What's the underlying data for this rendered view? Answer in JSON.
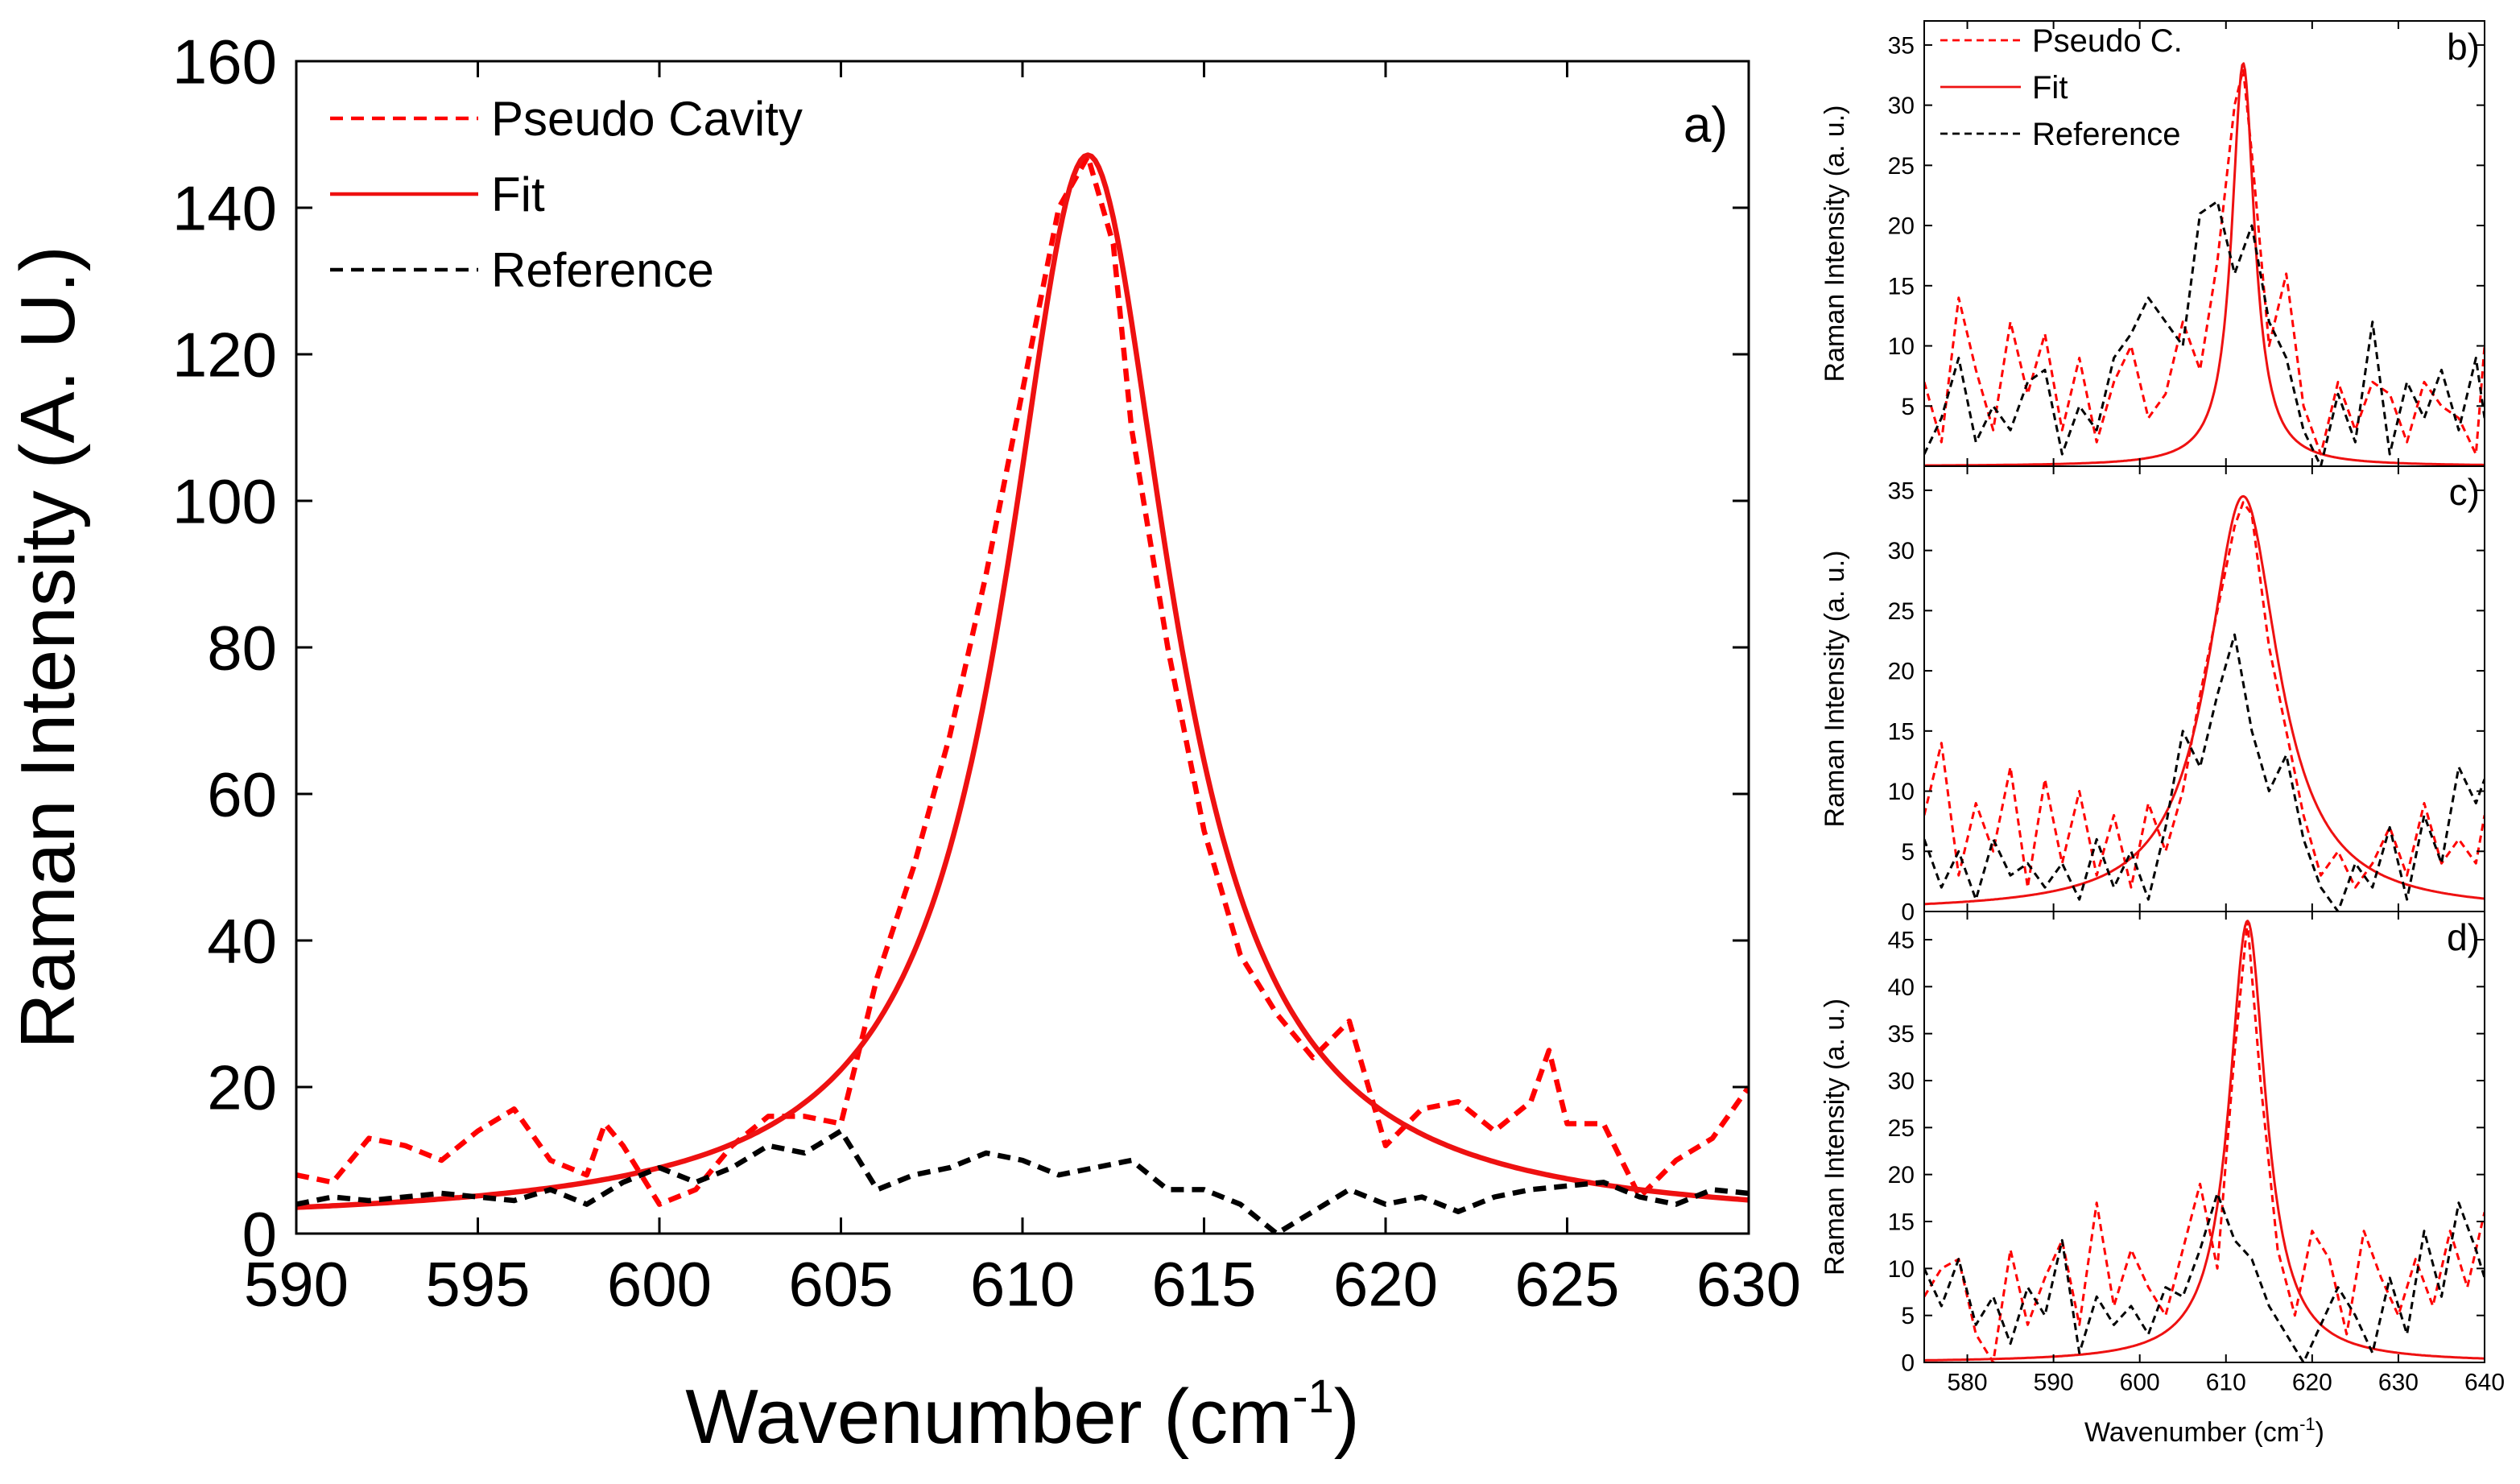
{
  "colors": {
    "pseudo": "#ff0000",
    "fit": "#ee1111",
    "reference": "#000000",
    "axis": "#000000"
  },
  "chart_data": [
    {
      "panel": "a)",
      "type": "line",
      "xlabel": "Wavenumber (cm",
      "xlabel_sup": "-1",
      "xlabel_end": ")",
      "ylabel": "Raman Intensity (A. U.)",
      "xlim": [
        590,
        630
      ],
      "ylim": [
        0,
        160
      ],
      "xticks": [
        590,
        595,
        600,
        605,
        610,
        615,
        620,
        625,
        630
      ],
      "yticks": [
        0,
        20,
        40,
        60,
        80,
        100,
        120,
        140,
        160
      ],
      "legend_position": "top-left",
      "grid": false,
      "fit": {
        "center": 611.8,
        "amp": 146,
        "gamma": 2.8,
        "base": 1.2
      },
      "series": [
        {
          "name": "Pseudo Cavity",
          "style": "dashed-red",
          "x": [
            590,
            591,
            592,
            593,
            594,
            595,
            596,
            597,
            598,
            598.5,
            599,
            600,
            601,
            602,
            603,
            604,
            605,
            606,
            607,
            608,
            609,
            610,
            611,
            611.8,
            612.5,
            613,
            614,
            615,
            616,
            617,
            618,
            619,
            620,
            621,
            622,
            623,
            624,
            624.5,
            625,
            626,
            627,
            628,
            629,
            630
          ],
          "y": [
            8,
            7,
            13,
            12,
            10,
            14,
            17,
            10,
            8,
            15,
            12,
            4,
            6,
            12,
            16,
            16,
            15,
            35,
            50,
            68,
            90,
            115,
            140,
            147,
            135,
            110,
            80,
            55,
            38,
            30,
            24,
            29,
            12,
            17,
            18,
            14,
            18,
            25,
            15,
            15,
            5,
            10,
            13,
            20
          ]
        },
        {
          "name": "Fit",
          "style": "solid-red",
          "fit": true
        },
        {
          "name": "Reference",
          "style": "dashed-black",
          "x": [
            590,
            591,
            592,
            593,
            594,
            595,
            596,
            597,
            598,
            599,
            600,
            601,
            602,
            603,
            604,
            605,
            606,
            607,
            608,
            609,
            610,
            611,
            612,
            613,
            614,
            615,
            616,
            617,
            618,
            619,
            620,
            621,
            622,
            623,
            624,
            625,
            626,
            627,
            628,
            629,
            630
          ],
          "y": [
            4,
            5,
            4.5,
            5,
            5.5,
            5,
            4.5,
            6,
            4,
            7,
            9,
            7,
            9,
            12,
            11,
            14,
            6,
            8,
            9,
            11,
            10,
            8,
            9,
            10,
            6,
            6,
            4,
            0,
            3,
            6,
            4,
            5,
            3,
            5,
            6,
            6.5,
            7,
            5,
            4,
            6,
            5.5
          ]
        }
      ]
    },
    {
      "panel": "b)",
      "type": "line",
      "xlim": [
        575,
        640
      ],
      "ylim": [
        0,
        37
      ],
      "yticks": [
        5,
        10,
        15,
        20,
        25,
        30,
        35
      ],
      "ylabel": "Raman Intensity (a. u.)",
      "legend_position": "top-left",
      "fit": {
        "center": 612,
        "amp": 33.5,
        "gamma": 1.6,
        "base": 0
      },
      "series": [
        {
          "name": "Pseudo C.",
          "style": "dashed-red",
          "x": [
            575,
            577,
            579,
            581,
            583,
            585,
            587,
            589,
            591,
            593,
            595,
            597,
            599,
            601,
            603,
            605,
            607,
            609,
            611,
            612,
            613,
            615,
            617,
            619,
            621,
            623,
            625,
            627,
            629,
            631,
            633,
            635,
            637,
            639,
            640
          ],
          "y": [
            7,
            2,
            14,
            8,
            3,
            12,
            6,
            11,
            3,
            9,
            2,
            7,
            10,
            4,
            6,
            12,
            8,
            17,
            30,
            33,
            26,
            10,
            16,
            5,
            1,
            7,
            3,
            7,
            6,
            2,
            7,
            5,
            4,
            1,
            10
          ]
        },
        {
          "name": "Fit",
          "style": "solid-red",
          "fit": true
        },
        {
          "name": "Reference",
          "style": "dashed-black",
          "x": [
            575,
            577,
            579,
            581,
            583,
            585,
            587,
            589,
            591,
            593,
            595,
            597,
            599,
            601,
            603,
            605,
            607,
            609,
            611,
            613,
            615,
            617,
            619,
            621,
            623,
            625,
            627,
            629,
            631,
            633,
            635,
            637,
            639,
            640
          ],
          "y": [
            1,
            4,
            9,
            2,
            5,
            3,
            7,
            8,
            1,
            5,
            3,
            9,
            11,
            14,
            12,
            10,
            21,
            22,
            16,
            20,
            12,
            9,
            3,
            0,
            6,
            2,
            12,
            1,
            7,
            4,
            8,
            3,
            9,
            4
          ]
        }
      ]
    },
    {
      "panel": "c)",
      "type": "line",
      "xlim": [
        575,
        640
      ],
      "ylim": [
        0,
        37
      ],
      "yticks": [
        0,
        5,
        10,
        15,
        20,
        25,
        30,
        35
      ],
      "ylabel": "Raman Intensity (a. u.)",
      "fit": {
        "center": 612,
        "amp": 34.5,
        "gamma": 5,
        "base": 0
      },
      "series": [
        {
          "name": "Pseudo C.",
          "style": "dashed-red",
          "x": [
            575,
            577,
            579,
            581,
            583,
            585,
            587,
            589,
            591,
            593,
            595,
            597,
            599,
            601,
            603,
            605,
            607,
            609,
            611,
            612,
            613,
            615,
            617,
            619,
            621,
            623,
            625,
            627,
            629,
            631,
            633,
            635,
            637,
            639,
            640
          ],
          "y": [
            8,
            14,
            3,
            9,
            5,
            12,
            2,
            11,
            4,
            10,
            3,
            8,
            2,
            9,
            5,
            10,
            18,
            25,
            32,
            34,
            33,
            22,
            15,
            8,
            3,
            5,
            2,
            4,
            7,
            3,
            9,
            4,
            6,
            4,
            8
          ]
        },
        {
          "name": "Fit",
          "style": "solid-red",
          "fit": true
        },
        {
          "name": "Reference",
          "style": "dashed-black",
          "x": [
            575,
            577,
            579,
            581,
            583,
            585,
            587,
            589,
            591,
            593,
            595,
            597,
            599,
            601,
            603,
            605,
            607,
            609,
            611,
            613,
            615,
            617,
            619,
            621,
            623,
            625,
            627,
            629,
            631,
            633,
            635,
            637,
            639,
            640
          ],
          "y": [
            6,
            2,
            5,
            1,
            6,
            3,
            4,
            2,
            4,
            1,
            6,
            2,
            5,
            1,
            7,
            15,
            12,
            18,
            23,
            15,
            10,
            13,
            6,
            2,
            0,
            4,
            2,
            7,
            1,
            8,
            4,
            12,
            9,
            11
          ]
        }
      ]
    },
    {
      "panel": "d)",
      "type": "line",
      "xlabel": "Wavenumber (cm",
      "xlabel_sup": "-1",
      "xlabel_end": ")",
      "xlim": [
        575,
        640
      ],
      "ylim": [
        0,
        48
      ],
      "xticks": [
        580,
        590,
        600,
        610,
        620,
        630,
        640
      ],
      "yticks": [
        0,
        5,
        10,
        15,
        20,
        25,
        30,
        35,
        40,
        45
      ],
      "ylabel": "Raman Intensity (a. u.)",
      "fit": {
        "center": 612.5,
        "amp": 47,
        "gamma": 2.6,
        "base": 0
      },
      "series": [
        {
          "name": "Pseudo C.",
          "style": "dashed-red",
          "x": [
            575,
            577,
            579,
            581,
            583,
            585,
            587,
            589,
            591,
            593,
            595,
            597,
            599,
            601,
            603,
            605,
            607,
            609,
            611,
            612.5,
            614,
            616,
            618,
            620,
            622,
            624,
            626,
            628,
            630,
            632,
            634,
            636,
            638,
            640
          ],
          "y": [
            7,
            10,
            11,
            3,
            0,
            12,
            4,
            9,
            13,
            4,
            17,
            6,
            12,
            8,
            5,
            12,
            19,
            10,
            33,
            47,
            30,
            12,
            5,
            14,
            11,
            3,
            14,
            9,
            5,
            11,
            6,
            14,
            8,
            16
          ]
        },
        {
          "name": "Fit",
          "style": "solid-red",
          "fit": true
        },
        {
          "name": "Reference",
          "style": "dashed-black",
          "x": [
            575,
            577,
            579,
            581,
            583,
            585,
            587,
            589,
            591,
            593,
            595,
            597,
            599,
            601,
            603,
            605,
            607,
            609,
            611,
            613,
            615,
            617,
            619,
            621,
            623,
            625,
            627,
            629,
            631,
            633,
            635,
            637,
            639,
            640
          ],
          "y": [
            10,
            6,
            11,
            4,
            7,
            2,
            8,
            5,
            13,
            1,
            7,
            4,
            6,
            3,
            8,
            7,
            12,
            18,
            13,
            11,
            6,
            3,
            0,
            4,
            8,
            5,
            1,
            9,
            3,
            14,
            7,
            17,
            12,
            9
          ]
        }
      ]
    }
  ]
}
